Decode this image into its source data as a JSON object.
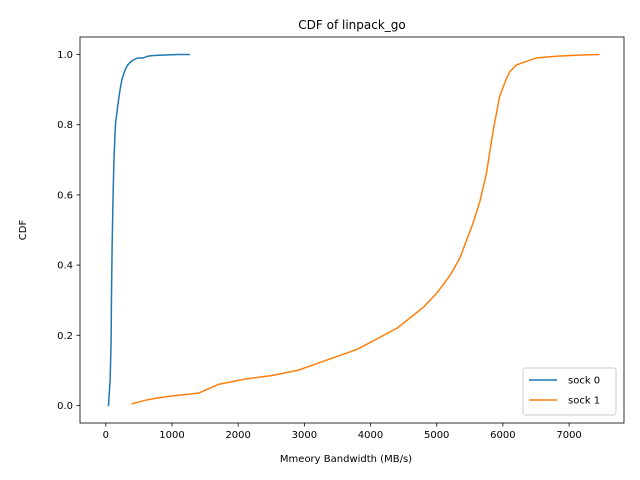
{
  "chart_data": {
    "type": "line",
    "title": "CDF of linpack_go",
    "xlabel": "Mmeory Bandwidth (MB/s)",
    "ylabel": "CDF",
    "xlim": [
      -390,
      7830
    ],
    "ylim": [
      -0.05,
      1.05
    ],
    "xticks": [
      0,
      1000,
      2000,
      3000,
      4000,
      5000,
      6000,
      7000
    ],
    "yticks": [
      0.0,
      0.2,
      0.4,
      0.6,
      0.8,
      1.0
    ],
    "xtick_labels": [
      "0",
      "1000",
      "2000",
      "3000",
      "4000",
      "5000",
      "6000",
      "7000"
    ],
    "ytick_labels": [
      "0.0",
      "0.2",
      "0.4",
      "0.6",
      "0.8",
      "1.0"
    ],
    "grid": false,
    "legend_position": "lower right",
    "series": [
      {
        "name": "sock 0",
        "color": "#1f77b4",
        "x": [
          40,
          65,
          80,
          85,
          95,
          105,
          115,
          125,
          140,
          150,
          165,
          185,
          215,
          245,
          280,
          300,
          330,
          380,
          430,
          480,
          560,
          630,
          700,
          800,
          950,
          1100,
          1260
        ],
        "y": [
          0.0,
          0.07,
          0.18,
          0.3,
          0.45,
          0.55,
          0.64,
          0.71,
          0.78,
          0.81,
          0.83,
          0.86,
          0.9,
          0.93,
          0.95,
          0.96,
          0.97,
          0.98,
          0.986,
          0.99,
          0.99,
          0.995,
          0.997,
          0.998,
          0.999,
          1.0,
          1.0
        ]
      },
      {
        "name": "sock 1",
        "color": "#ff7f0e",
        "x": [
          400,
          600,
          800,
          1000,
          1400,
          1700,
          2100,
          2500,
          2900,
          3200,
          3500,
          3800,
          4000,
          4200,
          4400,
          4600,
          4800,
          5000,
          5200,
          5350,
          5450,
          5550,
          5650,
          5750,
          5850,
          5950,
          6050,
          6100,
          6200,
          6350,
          6500,
          6800,
          7100,
          7450
        ],
        "y": [
          0.005,
          0.015,
          0.022,
          0.027,
          0.035,
          0.06,
          0.075,
          0.085,
          0.1,
          0.12,
          0.14,
          0.16,
          0.18,
          0.2,
          0.22,
          0.25,
          0.28,
          0.32,
          0.37,
          0.42,
          0.47,
          0.52,
          0.58,
          0.66,
          0.78,
          0.88,
          0.93,
          0.95,
          0.97,
          0.98,
          0.99,
          0.995,
          0.998,
          1.0
        ]
      }
    ]
  }
}
